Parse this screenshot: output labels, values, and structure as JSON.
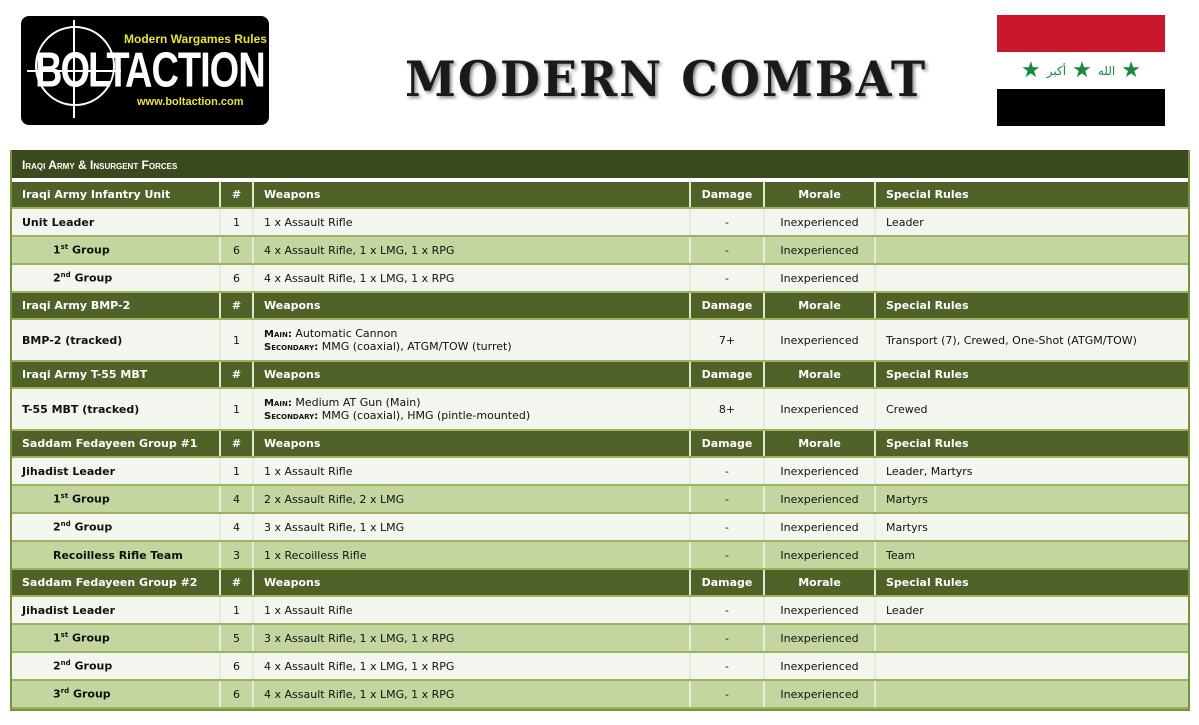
{
  "logo": {
    "brand": "BOLT ACTION",
    "tagline": "Modern Wargames Rules",
    "url": "www.boltaction.com"
  },
  "title": "MODERN COMBAT",
  "flag": {
    "colors": [
      "#c8172a",
      "#ffffff",
      "#000000"
    ],
    "star_color": "#168a3c",
    "script": "الله أكبر"
  },
  "colors": {
    "title_bar": "#3b4a1e",
    "header": "#506227",
    "row_light": "#f3f6ee",
    "row_alt": "#c4d6a0",
    "border": "#76923c"
  },
  "table_title": "Iraqi Army & Insurgent Forces",
  "columns": [
    "#",
    "Weapons",
    "Damage",
    "Morale",
    "Special Rules"
  ],
  "sections": [
    {
      "name": "Iraqi Army Infantry Unit",
      "rows": [
        {
          "label": "Unit Leader",
          "count": "1",
          "weapons": "1 x Assault Rifle",
          "damage": "-",
          "morale": "Inexperienced",
          "special": "Leader"
        },
        {
          "num": "1",
          "sup": "st",
          "label": "Group",
          "count": "6",
          "weapons": "4 x Assault Rifle, 1 x LMG,  1 x RPG",
          "damage": "-",
          "morale": "Inexperienced",
          "special": ""
        },
        {
          "num": "2",
          "sup": "nd",
          "label": "Group",
          "count": "6",
          "weapons": "4 x Assault Rifle, 1 x LMG,  1 x RPG",
          "damage": "-",
          "morale": "Inexperienced",
          "special": ""
        }
      ]
    },
    {
      "name": "Iraqi Army BMP-2",
      "rows": [
        {
          "label": "BMP-2 (tracked)",
          "count": "1",
          "main_label": "Main:",
          "main": "Automatic Cannon",
          "secondary_label": "Secondary:",
          "secondary": "MMG (coaxial), ATGM/TOW (turret)",
          "damage": "7+",
          "morale": "Inexperienced",
          "special": "Transport (7), Crewed,  One-Shot (ATGM/TOW)"
        }
      ]
    },
    {
      "name": "Iraqi Army T-55 MBT",
      "rows": [
        {
          "label": "T-55 MBT (tracked)",
          "count": "1",
          "main_label": "Main:",
          "main": "Medium AT Gun (Main)",
          "secondary_label": "Secondary:",
          "secondary": "MMG (coaxial), HMG (pintle-mounted)",
          "damage": "8+",
          "morale": "Inexperienced",
          "special": "Crewed"
        }
      ]
    },
    {
      "name": "Saddam Fedayeen Group #1",
      "rows": [
        {
          "label": "Jihadist  Leader",
          "count": "1",
          "weapons": "1 x Assault Rifle",
          "damage": "-",
          "morale": "Inexperienced",
          "special": "Leader, Martyrs"
        },
        {
          "num": "1",
          "sup": "st",
          "label": "Group",
          "count": "4",
          "weapons": "2 x Assault Rifle, 2 x LMG",
          "damage": "-",
          "morale": "Inexperienced",
          "special": "Martyrs"
        },
        {
          "num": "2",
          "sup": "nd",
          "label": "Group",
          "count": "4",
          "weapons": "3 x Assault Rifle, 1 x LMG",
          "damage": "-",
          "morale": "Inexperienced",
          "special": "Martyrs"
        },
        {
          "label": "Recoilless Rifle Team",
          "indent": true,
          "count": "3",
          "weapons": "1 x Recoilless Rifle",
          "damage": "-",
          "morale": "Inexperienced",
          "special": "Team"
        }
      ]
    },
    {
      "name": "Saddam Fedayeen Group #2",
      "rows": [
        {
          "label": "Jihadist  Leader",
          "count": "1",
          "weapons": "1 x Assault Rifle",
          "damage": "-",
          "morale": "Inexperienced",
          "special": "Leader"
        },
        {
          "num": "1",
          "sup": "st",
          "label": "Group",
          "count": "5",
          "weapons": "3 x Assault Rifle, 1 x LMG,  1 x RPG",
          "damage": "-",
          "morale": "Inexperienced",
          "special": ""
        },
        {
          "num": "2",
          "sup": "nd",
          "label": "Group",
          "count": "6",
          "weapons": "4 x Assault Rifle, 1 x LMG,  1 x RPG",
          "damage": "-",
          "morale": "Inexperienced",
          "special": ""
        },
        {
          "num": "3",
          "sup": "rd",
          "label": "Group",
          "count": "6",
          "weapons": "4 x Assault Rifle, 1 x LMG,  1 x RPG",
          "damage": "-",
          "morale": "Inexperienced",
          "special": ""
        }
      ]
    }
  ]
}
